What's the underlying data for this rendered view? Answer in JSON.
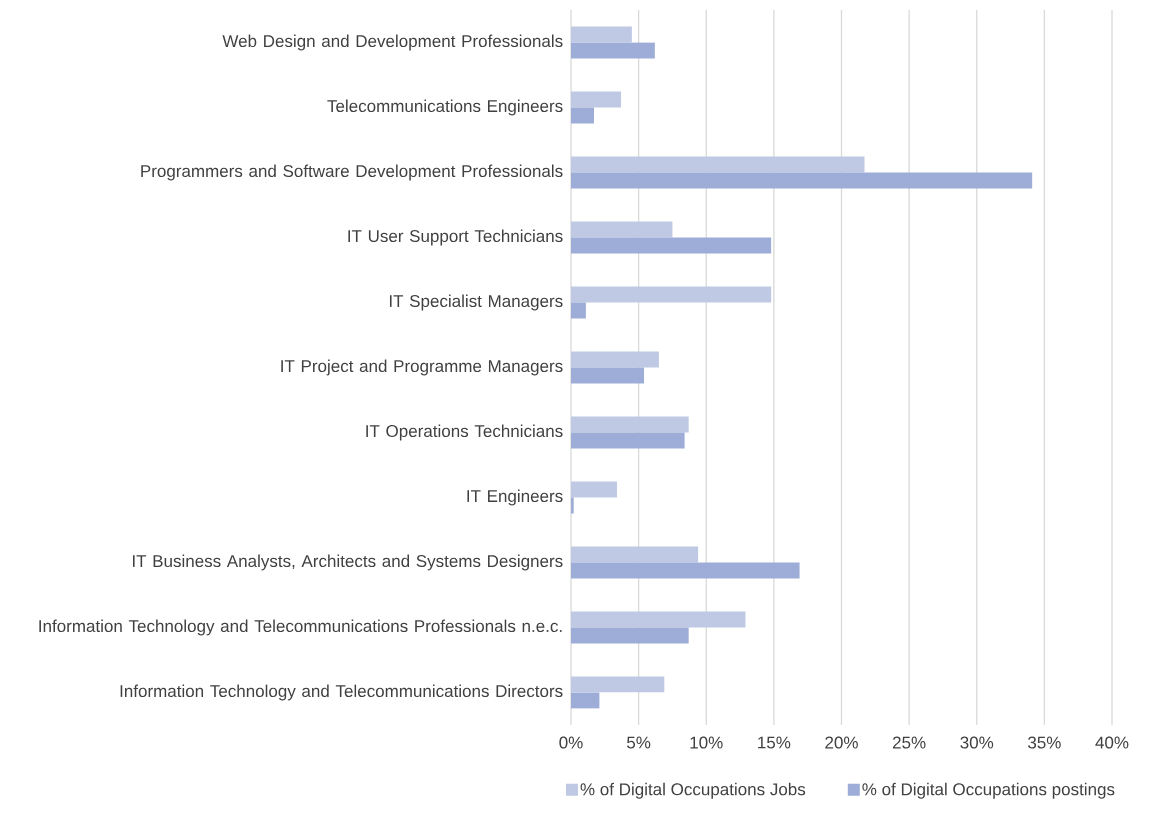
{
  "chart_data": {
    "type": "bar",
    "orientation": "horizontal",
    "categories": [
      "Web Design and Development Professionals",
      "Telecommunications Engineers",
      "Programmers and Software Development Professionals",
      "IT User Support Technicians",
      "IT Specialist Managers",
      "IT Project and Programme Managers",
      "IT Operations Technicians",
      "IT Engineers",
      "IT Business Analysts, Architects and Systems Designers",
      "Information Technology and Telecommunications Professionals n.e.c.",
      "Information Technology and Telecommunications Directors"
    ],
    "series": [
      {
        "name": "% of Digital Occupations Jobs",
        "color": "#bfc9e3",
        "values": [
          4.5,
          3.7,
          21.7,
          7.5,
          14.8,
          6.5,
          8.7,
          3.4,
          9.4,
          12.9,
          6.9
        ]
      },
      {
        "name": "% of Digital Occupations postings",
        "color": "#9dadd7",
        "values": [
          6.2,
          1.7,
          34.1,
          14.8,
          1.1,
          5.4,
          8.4,
          0.2,
          16.9,
          8.7,
          2.1
        ]
      }
    ],
    "xlim": [
      0,
      40
    ],
    "xticks": [
      {
        "value": 0,
        "label": "0%"
      },
      {
        "value": 5,
        "label": "5%"
      },
      {
        "value": 10,
        "label": "10%"
      },
      {
        "value": 15,
        "label": "15%"
      },
      {
        "value": 20,
        "label": "20%"
      },
      {
        "value": 25,
        "label": "25%"
      },
      {
        "value": 30,
        "label": "30%"
      },
      {
        "value": 35,
        "label": "35%"
      },
      {
        "value": 40,
        "label": "40%"
      }
    ],
    "grid": "x",
    "legend": "bottom"
  }
}
